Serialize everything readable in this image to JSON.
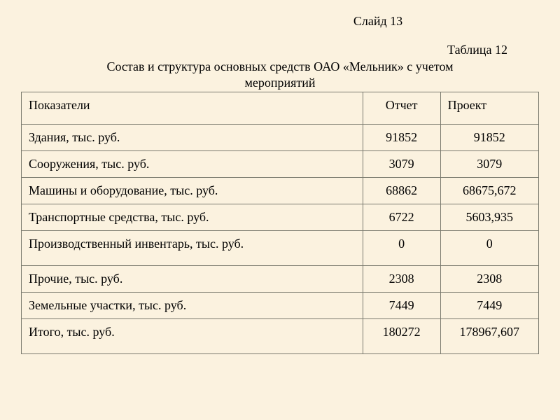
{
  "slide_number": "Слайд 13",
  "table_number": "Таблица 12",
  "table_title_line1": "Состав и структура основных средств ОАО «Мельник» с учетом",
  "table_title_line2": "мероприятий",
  "table": {
    "type": "table",
    "background_color": "#fbf2df",
    "border_color": "#7a7a6e",
    "text_color": "#000000",
    "font_family": "Times New Roman",
    "header_fontsize": 18,
    "cell_fontsize": 18,
    "columns": [
      {
        "key": "indicator",
        "label": "Показатели",
        "width_pct": 66,
        "align": "left"
      },
      {
        "key": "report",
        "label": "Отчет",
        "width_pct": 15,
        "align": "center"
      },
      {
        "key": "project",
        "label": "Проект",
        "width_pct": 19,
        "align": "center"
      }
    ],
    "rows": [
      {
        "indicator": "Здания, тыс. руб.",
        "report": "91852",
        "project": "91852"
      },
      {
        "indicator": "Сооружения, тыс. руб.",
        "report": "3079",
        "project": "3079"
      },
      {
        "indicator": "Машины и оборудование, тыс. руб.",
        "report": "68862",
        "project": "68675,672"
      },
      {
        "indicator": "Транспортные средства, тыс. руб.",
        "report": "6722",
        "project": "5603,935"
      },
      {
        "indicator": "Производственный инвентарь, тыс. руб.",
        "report": "0",
        "project": "0"
      },
      {
        "indicator": "Прочие, тыс. руб.",
        "report": "2308",
        "project": "2308"
      },
      {
        "indicator": "Земельные участки, тыс. руб.",
        "report": "7449",
        "project": "7449"
      },
      {
        "indicator": "Итого, тыс. руб.",
        "report": "180272",
        "project": "178967,607"
      }
    ]
  }
}
